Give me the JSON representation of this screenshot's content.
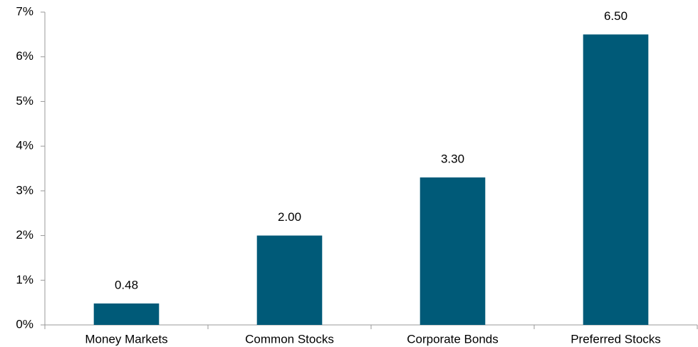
{
  "chart_data": {
    "type": "bar",
    "categories": [
      "Money Markets",
      "Common Stocks",
      "Corporate Bonds",
      "Preferred Stocks"
    ],
    "values": [
      0.48,
      2.0,
      3.3,
      6.5
    ],
    "value_labels": [
      "0.48",
      "2.00",
      "3.30",
      "6.50"
    ],
    "color": "#005a78",
    "ylim": [
      0,
      7
    ],
    "yticks": [
      {
        "value": 0,
        "label": "0%"
      },
      {
        "value": 1,
        "label": "1%"
      },
      {
        "value": 2,
        "label": "2%"
      },
      {
        "value": 3,
        "label": "3%"
      },
      {
        "value": 4,
        "label": "4%"
      },
      {
        "value": 5,
        "label": "5%"
      },
      {
        "value": 6,
        "label": "6%"
      },
      {
        "value": 7,
        "label": "7%"
      }
    ],
    "grid": false
  }
}
